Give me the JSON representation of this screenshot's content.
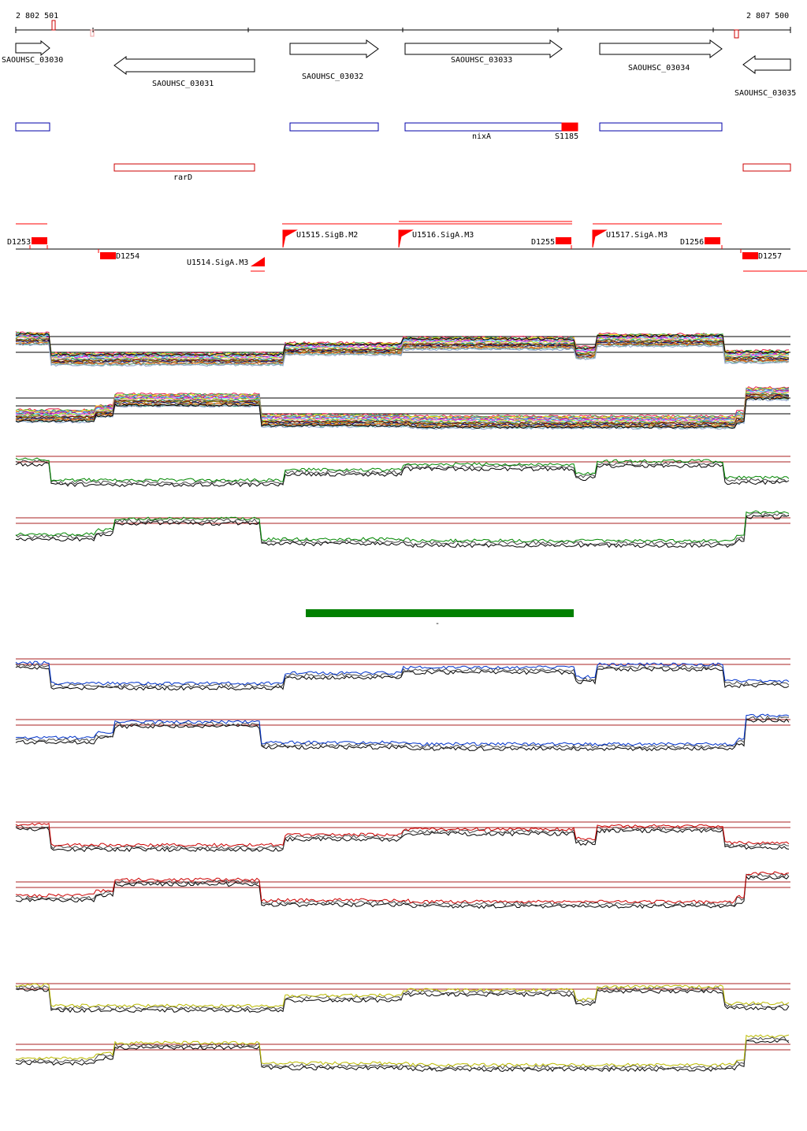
{
  "coordinates": {
    "start_label": "2 802 501",
    "end_label": "2 807 500"
  },
  "genes": [
    {
      "name": "SAOUHSC_03030",
      "strand": "+"
    },
    {
      "name": "SAOUHSC_03031",
      "strand": "-"
    },
    {
      "name": "SAOUHSC_03032",
      "strand": "+"
    },
    {
      "name": "SAOUHSC_03033",
      "strand": "+"
    },
    {
      "name": "SAOUHSC_03034",
      "strand": "+"
    },
    {
      "name": "SAOUHSC_03035",
      "strand": "-"
    }
  ],
  "annotations_plus": [
    {
      "name": "nixA"
    },
    {
      "name": "S1185"
    }
  ],
  "annotations_minus": [
    {
      "name": "rarD"
    }
  ],
  "transcription_features": [
    {
      "name": "D1253"
    },
    {
      "name": "D1254"
    },
    {
      "name": "U1514.SigA.M3"
    },
    {
      "name": "U1515.SigB.M2"
    },
    {
      "name": "U1516.SigA.M3"
    },
    {
      "name": "D1255"
    },
    {
      "name": "U1517.SigA.M3"
    },
    {
      "name": "D1256"
    },
    {
      "name": "D1257"
    }
  ],
  "highlight_marker": "-",
  "colors": {
    "gene_outline": "#000000",
    "annotation_plus": "#0000aa",
    "annotation_minus": "#cc0000",
    "feature_red": "#ff0000",
    "highlight_bar": "#008000",
    "reference_line": "#aa2222",
    "track_green": "#008800",
    "track_blue": "#0033cc",
    "track_red": "#cc0000",
    "track_yellow": "#bbbb00",
    "track_black": "#000000"
  }
}
